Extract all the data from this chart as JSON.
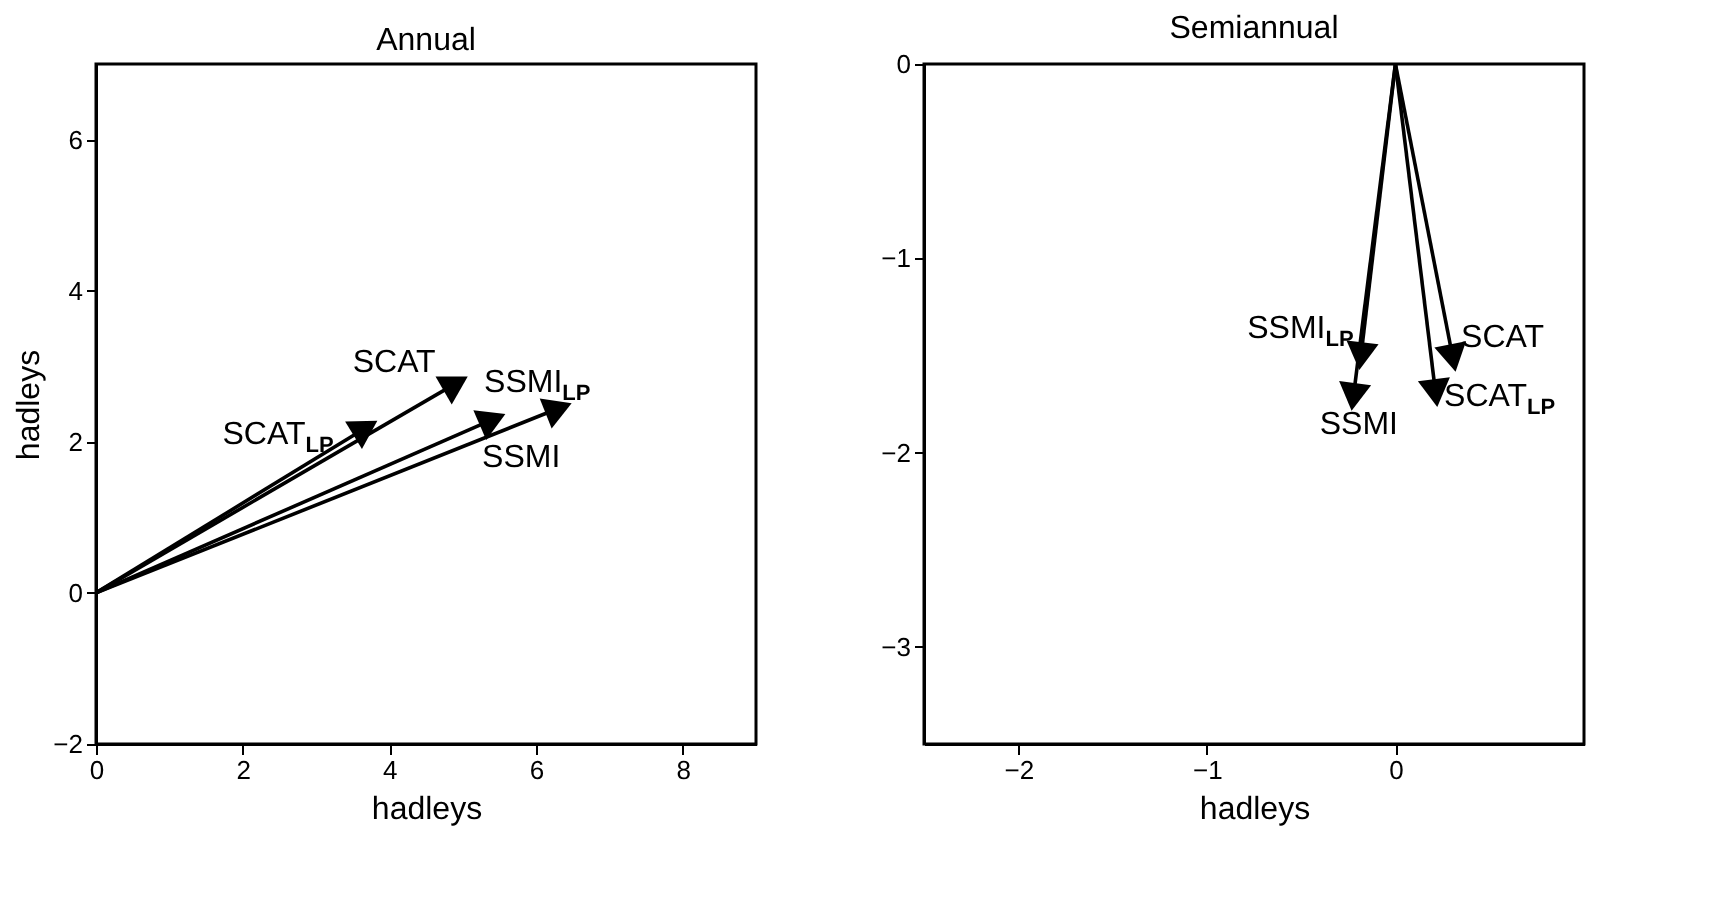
{
  "chart_data": [
    {
      "type": "line",
      "title": "Annual",
      "xlabel": "hadleys",
      "ylabel": "hadleys",
      "xlim": [
        0,
        9
      ],
      "ylim": [
        -2,
        7
      ],
      "xticks": [
        0,
        2,
        4,
        6,
        8
      ],
      "yticks": [
        -2,
        0,
        2,
        4,
        6
      ],
      "marker": "triangle",
      "series": [
        {
          "name": "SCAT$_{LP}$",
          "color": "#000000",
          "x": [
            0,
            3.62
          ],
          "values": [
            0,
            2.15
          ]
        },
        {
          "name": "SCAT",
          "color": "#000000",
          "x": [
            0,
            4.85
          ],
          "values": [
            0,
            2.74
          ]
        },
        {
          "name": "SSMI$_{LP}$",
          "color": "#000000",
          "x": [
            0,
            6.25
          ],
          "values": [
            0,
            2.42
          ]
        },
        {
          "name": "SSMI",
          "color": "#000000",
          "x": [
            0,
            5.35
          ],
          "values": [
            0,
            2.27
          ]
        }
      ]
    },
    {
      "type": "line",
      "title": "Semiannual",
      "xlabel": "hadleys",
      "xlim": [
        -2.5,
        1
      ],
      "ylim": [
        -3.5,
        0
      ],
      "xticks": [
        -2,
        -1,
        0
      ],
      "yticks": [
        -3,
        -2,
        -1,
        0
      ],
      "marker": "triangle",
      "series": [
        {
          "name": "SCAT$_{LP}$",
          "color": "#000000",
          "x": [
            0,
            0.21
          ],
          "values": [
            0,
            -1.67
          ]
        },
        {
          "name": "SCAT",
          "color": "#000000",
          "x": [
            0,
            0.3
          ],
          "values": [
            0,
            -1.49
          ]
        },
        {
          "name": "SSMI$_{LP}$",
          "color": "#000000",
          "x": [
            0,
            -0.18
          ],
          "values": [
            0,
            -1.48
          ]
        },
        {
          "name": "SSMI",
          "color": "#000000",
          "x": [
            0,
            -0.22
          ],
          "values": [
            0,
            -1.69
          ]
        }
      ]
    }
  ]
}
